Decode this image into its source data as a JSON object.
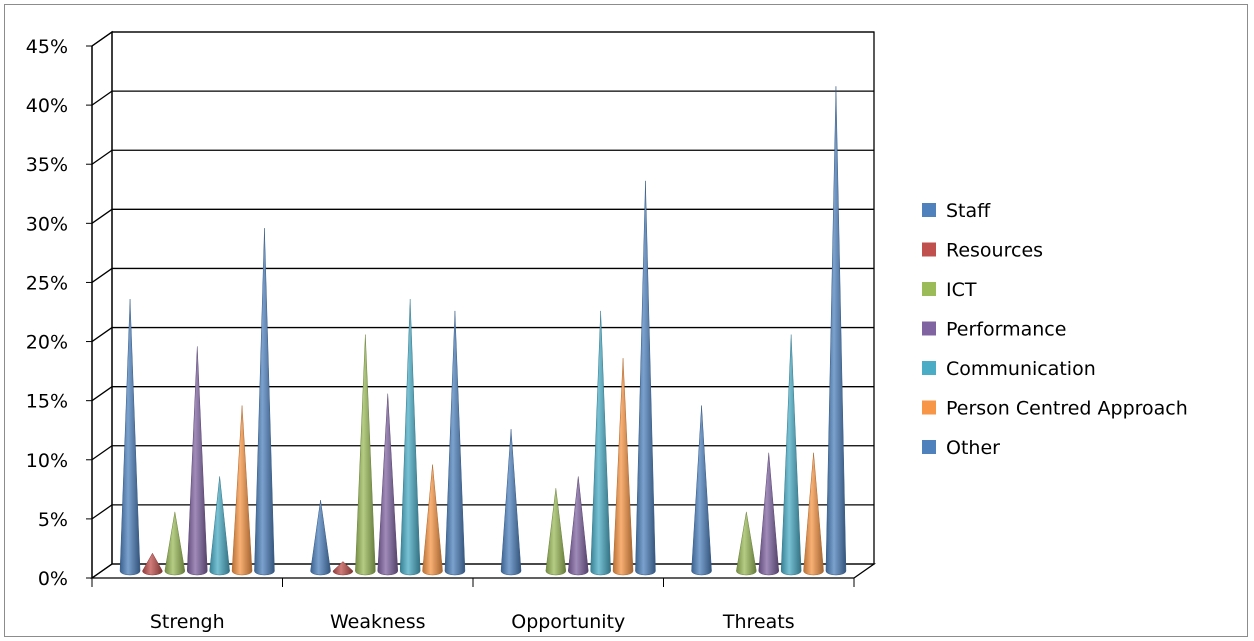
{
  "chart_data": {
    "type": "bar",
    "subtype": "3d-cone",
    "title": "",
    "xlabel": "",
    "ylabel": "",
    "ylim": [
      0,
      45
    ],
    "y_ticks": [
      "0%",
      "5%",
      "10%",
      "15%",
      "20%",
      "25%",
      "30%",
      "35%",
      "40%",
      "45%"
    ],
    "categories": [
      "Strengh",
      "Weakness",
      "Opportunity",
      "Threats"
    ],
    "grid": true,
    "legend_position": "right",
    "series": [
      {
        "name": "Staff",
        "color": "#4f81bd",
        "values": [
          23,
          6,
          12,
          14
        ]
      },
      {
        "name": "Resources",
        "color": "#c0504d",
        "values": [
          1.5,
          0.8,
          0,
          0
        ]
      },
      {
        "name": "ICT",
        "color": "#9bbb59",
        "values": [
          5,
          20,
          7,
          5
        ]
      },
      {
        "name": "Performance",
        "color": "#8064a2",
        "values": [
          19,
          15,
          8,
          10
        ]
      },
      {
        "name": "Communication",
        "color": "#4bacc6",
        "values": [
          8,
          23,
          22,
          20
        ]
      },
      {
        "name": "Person Centred Approach",
        "color": "#f79646",
        "values": [
          14,
          9,
          18,
          10
        ]
      },
      {
        "name": "Other",
        "color": "#4f81bd",
        "values": [
          29,
          22,
          33,
          41
        ]
      }
    ]
  }
}
